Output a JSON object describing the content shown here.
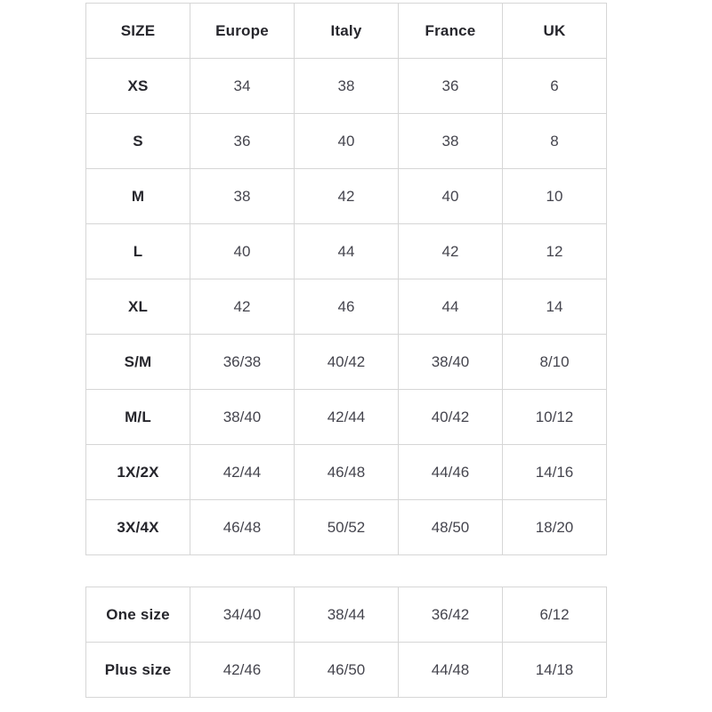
{
  "colors": {
    "background": "#ffffff",
    "border": "#d6d6d6",
    "label_text": "#26262c",
    "value_text": "#45454e"
  },
  "size_table": {
    "headers": [
      "SIZE",
      "Europe",
      "Italy",
      "France",
      "UK"
    ],
    "rows": [
      {
        "label": "XS",
        "values": [
          "34",
          "38",
          "36",
          "6"
        ]
      },
      {
        "label": "S",
        "values": [
          "36",
          "40",
          "38",
          "8"
        ]
      },
      {
        "label": "M",
        "values": [
          "38",
          "42",
          "40",
          "10"
        ]
      },
      {
        "label": "L",
        "values": [
          "40",
          "44",
          "42",
          "12"
        ]
      },
      {
        "label": "XL",
        "values": [
          "42",
          "46",
          "44",
          "14"
        ]
      },
      {
        "label": "S/M",
        "values": [
          "36/38",
          "40/42",
          "38/40",
          "8/10"
        ]
      },
      {
        "label": "M/L",
        "values": [
          "38/40",
          "42/44",
          "40/42",
          "10/12"
        ]
      },
      {
        "label": "1X/2X",
        "values": [
          "42/44",
          "46/48",
          "44/46",
          "14/16"
        ]
      },
      {
        "label": "3X/4X",
        "values": [
          "46/48",
          "50/52",
          "48/50",
          "18/20"
        ]
      }
    ]
  },
  "special_table": {
    "rows": [
      {
        "label": "One size",
        "values": [
          "34/40",
          "38/44",
          "36/42",
          "6/12"
        ]
      },
      {
        "label": "Plus size",
        "values": [
          "42/46",
          "46/50",
          "44/48",
          "14/18"
        ]
      }
    ]
  }
}
